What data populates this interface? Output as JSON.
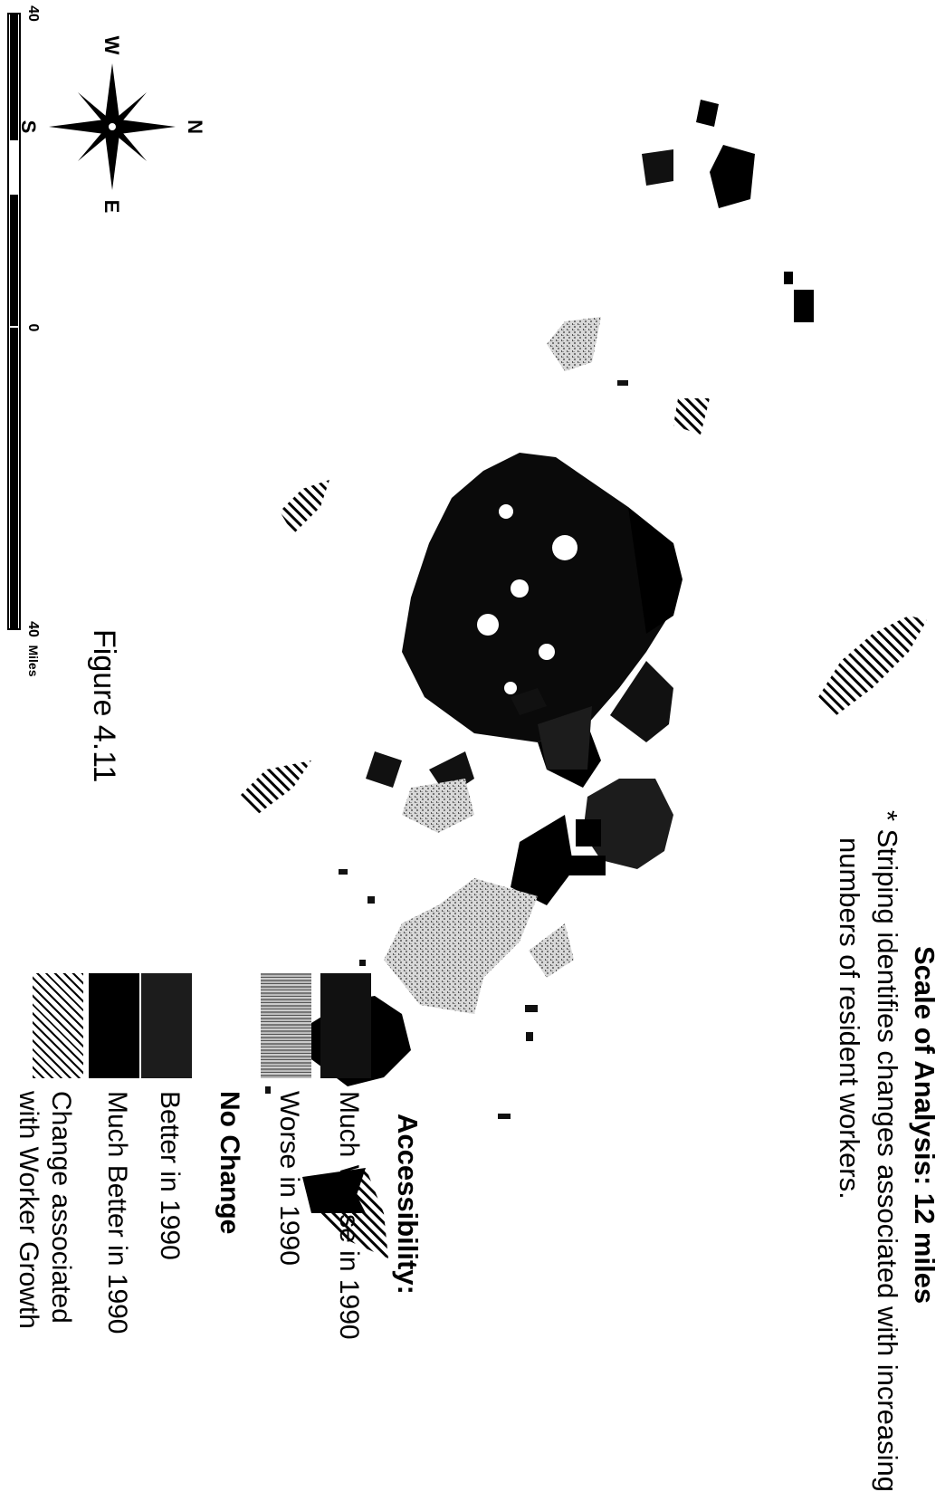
{
  "header": {
    "title": "Scale of Analysis: 12 miles",
    "note_line1": "* Striping identifies changes associated with increasing",
    "note_line2": "numbers of resident workers."
  },
  "figure_label": "Figure 4.11",
  "legend": {
    "heading": "Accessibility:",
    "items": [
      {
        "label": "Much Worse in 1990",
        "swatch": "solid-dark",
        "color": "#111111"
      },
      {
        "label": "Worse in 1990",
        "swatch": "stipple-gray",
        "color": "#999999"
      },
      {
        "label": "No Change",
        "swatch": "none",
        "color": "#ffffff"
      },
      {
        "label": "Better in 1990",
        "swatch": "solid-dark",
        "color": "#1c1c1c"
      },
      {
        "label": "Much Better in 1990",
        "swatch": "solid-black",
        "color": "#000000"
      },
      {
        "label": "Change associated",
        "label2": "with Worker Growth",
        "swatch": "diagonal-stripes",
        "color": "#000000"
      }
    ]
  },
  "compass": {
    "n": "N",
    "e": "E",
    "s": "S",
    "w": "W",
    "icon": "compass-rose-icon"
  },
  "scale_bar": {
    "start": "40",
    "mid": "0",
    "end": "40",
    "unit": "Miles"
  }
}
